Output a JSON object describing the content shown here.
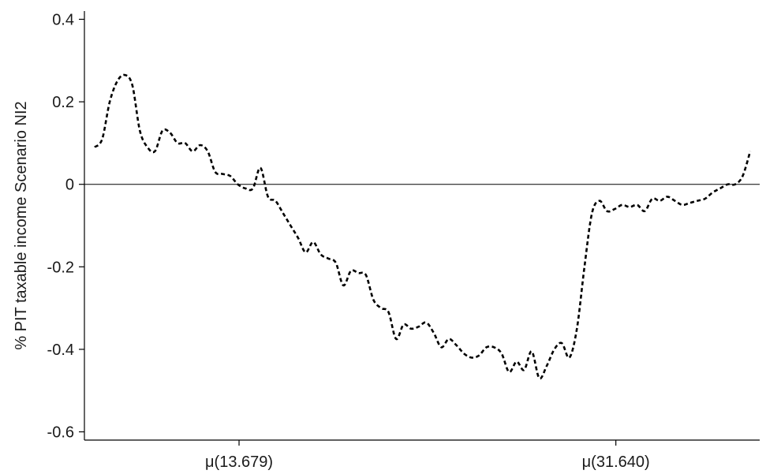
{
  "chart_data": {
    "type": "line",
    "title": "",
    "xlabel": "",
    "ylabel": "% PIT taxable income Scenario NI2",
    "xlim": [
      0,
      100
    ],
    "ylim": [
      -0.62,
      0.42
    ],
    "yticks": [
      0.4,
      0.2,
      0,
      -0.2,
      -0.4,
      -0.6
    ],
    "ytick_labels": [
      "0.4",
      "0.2",
      "0",
      "-0.2",
      "-0.4",
      "-0.6"
    ],
    "xticks": [
      {
        "x": 22.9,
        "label": "μ(13.679)"
      },
      {
        "x": 78.7,
        "label": "μ(31.640)"
      }
    ],
    "reference_line": {
      "y": 0
    },
    "grid": false,
    "legend": "none",
    "colors": {
      "series": "#000000",
      "axis": "#000000"
    },
    "series": [
      {
        "name": "",
        "style": "dashed",
        "x": [
          1,
          2,
          3,
          4,
          5,
          6,
          7,
          8,
          9,
          10,
          11,
          12,
          13,
          14,
          15,
          16,
          17,
          18,
          19,
          20,
          21,
          22,
          23,
          24,
          25,
          26,
          27,
          28,
          29,
          30,
          31,
          32,
          33,
          34,
          35,
          36,
          37,
          38,
          39,
          40,
          41,
          42,
          43,
          44,
          45,
          46,
          47,
          48,
          49,
          50,
          51,
          52,
          53,
          54,
          55,
          56,
          57,
          58,
          59,
          60,
          61,
          62,
          63,
          64,
          65,
          66,
          67,
          68,
          69,
          70,
          71,
          72,
          73,
          74,
          75,
          76,
          77,
          78,
          79,
          80,
          81,
          82,
          83,
          84,
          85,
          86,
          87,
          88,
          89,
          90,
          91,
          92,
          93,
          94,
          95,
          96,
          97,
          98,
          99,
          100
        ],
        "y": [
          0.09,
          0.11,
          0.2,
          0.25,
          0.265,
          0.24,
          0.13,
          0.09,
          0.08,
          0.13,
          0.125,
          0.1,
          0.1,
          0.08,
          0.095,
          0.08,
          0.03,
          0.025,
          0.02,
          0.0,
          -0.01,
          -0.01,
          0.04,
          -0.03,
          -0.04,
          -0.07,
          -0.1,
          -0.13,
          -0.165,
          -0.14,
          -0.17,
          -0.18,
          -0.19,
          -0.245,
          -0.21,
          -0.215,
          -0.22,
          -0.28,
          -0.3,
          -0.31,
          -0.375,
          -0.34,
          -0.35,
          -0.345,
          -0.335,
          -0.36,
          -0.395,
          -0.375,
          -0.39,
          -0.41,
          -0.42,
          -0.415,
          -0.395,
          -0.395,
          -0.41,
          -0.455,
          -0.43,
          -0.45,
          -0.405,
          -0.47,
          -0.44,
          -0.4,
          -0.385,
          -0.42,
          -0.35,
          -0.2,
          -0.07,
          -0.04,
          -0.065,
          -0.06,
          -0.05,
          -0.055,
          -0.05,
          -0.065,
          -0.035,
          -0.04,
          -0.03,
          -0.04,
          -0.05,
          -0.045,
          -0.04,
          -0.035,
          -0.02,
          -0.01,
          0.0,
          0.0,
          0.02,
          0.08,
          null,
          null,
          null,
          null,
          null,
          null,
          null,
          null,
          null,
          null,
          null,
          null
        ]
      }
    ]
  }
}
